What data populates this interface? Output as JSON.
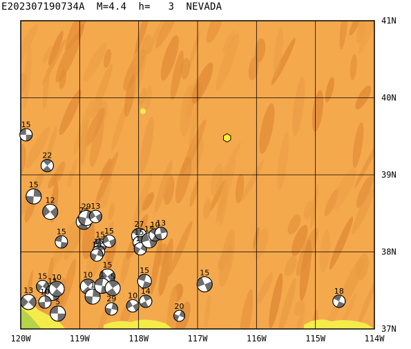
{
  "header": {
    "title": "E202307190734A  M=4.4  h=   3  NEVADA"
  },
  "map": {
    "lon_range": [
      -120,
      -114
    ],
    "lat_range": [
      37,
      41
    ],
    "colors": {
      "land": "#f5a94d",
      "terrain_dark": "#e08a36",
      "terrain_mid": "#ea9c44",
      "lowland_green": "#b6d24a",
      "lowland_yellow": "#f3ec4a",
      "grid": "#000000",
      "epicenter": "#ffee33"
    },
    "x_ticks": [
      "120W",
      "119W",
      "118W",
      "117W",
      "116W",
      "115W",
      "114W"
    ],
    "y_ticks": [
      "41N",
      "40N",
      "39N",
      "38N",
      "37N"
    ],
    "epicenter": {
      "lon": -116.5,
      "lat": 39.48
    },
    "mechanisms": [
      {
        "lon": -119.91,
        "lat": 39.52,
        "label": "15",
        "size": 9
      },
      {
        "lon": -119.55,
        "lat": 39.12,
        "label": "22",
        "size": 9
      },
      {
        "lon": -119.78,
        "lat": 38.72,
        "label": "15",
        "size": 11
      },
      {
        "lon": -119.5,
        "lat": 38.52,
        "label": "12",
        "size": 11
      },
      {
        "lon": -119.31,
        "lat": 38.13,
        "label": "15",
        "size": 9
      },
      {
        "lon": -118.93,
        "lat": 38.39,
        "label": "24",
        "size": 11
      },
      {
        "lon": -118.89,
        "lat": 38.44,
        "label": "29",
        "size": 11
      },
      {
        "lon": -118.73,
        "lat": 38.46,
        "label": "13",
        "size": 9
      },
      {
        "lon": -118.65,
        "lat": 38.09,
        "label": "15",
        "size": 9
      },
      {
        "lon": -118.68,
        "lat": 38.0,
        "label": "15",
        "size": 9
      },
      {
        "lon": -118.71,
        "lat": 37.96,
        "label": "18",
        "size": 9
      },
      {
        "lon": -118.5,
        "lat": 38.14,
        "label": "15",
        "size": 9
      },
      {
        "lon": -117.99,
        "lat": 38.21,
        "label": "27",
        "size": 11
      },
      {
        "lon": -117.99,
        "lat": 38.12,
        "label": "15",
        "size": 9
      },
      {
        "lon": -117.97,
        "lat": 38.04,
        "label": "13",
        "size": 9
      },
      {
        "lon": -117.82,
        "lat": 38.15,
        "label": "15",
        "size": 11
      },
      {
        "lon": -117.72,
        "lat": 38.22,
        "label": "10",
        "size": 9
      },
      {
        "lon": -117.62,
        "lat": 38.24,
        "label": "13",
        "size": 9
      },
      {
        "lon": -119.63,
        "lat": 37.55,
        "label": "15",
        "size": 9
      },
      {
        "lon": -119.46,
        "lat": 37.47,
        "label": "15",
        "size": 11
      },
      {
        "lon": -119.39,
        "lat": 37.52,
        "label": "10",
        "size": 11
      },
      {
        "lon": -119.59,
        "lat": 37.35,
        "label": "10",
        "size": 9
      },
      {
        "lon": -119.87,
        "lat": 37.35,
        "label": "13",
        "size": 11
      },
      {
        "lon": -119.37,
        "lat": 37.2,
        "label": "5",
        "size": 11
      },
      {
        "lon": -118.86,
        "lat": 37.55,
        "label": "10",
        "size": 11
      },
      {
        "lon": -118.78,
        "lat": 37.42,
        "label": "1",
        "size": 11
      },
      {
        "lon": -118.53,
        "lat": 37.68,
        "label": "15",
        "size": 11
      },
      {
        "lon": -118.62,
        "lat": 37.56,
        "label": "1",
        "size": 11
      },
      {
        "lon": -118.44,
        "lat": 37.53,
        "label": "5",
        "size": 11
      },
      {
        "lon": -118.46,
        "lat": 37.26,
        "label": "29",
        "size": 9
      },
      {
        "lon": -118.1,
        "lat": 37.3,
        "label": "10",
        "size": 9
      },
      {
        "lon": -117.9,
        "lat": 37.62,
        "label": "15",
        "size": 10
      },
      {
        "lon": -117.88,
        "lat": 37.36,
        "label": "14",
        "size": 9
      },
      {
        "lon": -117.31,
        "lat": 37.17,
        "label": "20",
        "size": 8
      },
      {
        "lon": -116.88,
        "lat": 37.58,
        "label": "15",
        "size": 11
      },
      {
        "lon": -114.6,
        "lat": 37.36,
        "label": "18",
        "size": 9
      }
    ]
  }
}
